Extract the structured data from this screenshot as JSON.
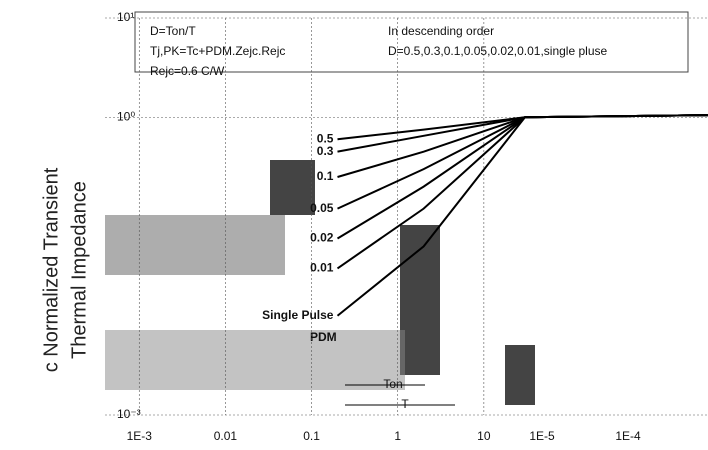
{
  "chart_data": {
    "type": "line",
    "y_label_lines": [
      "c Normalized Transient",
      "Thermal   Impedance"
    ],
    "xlim": [
      0.0004,
      4000
    ],
    "ylim": [
      0.001,
      10
    ],
    "log_x": true,
    "log_y": true,
    "grid": true,
    "xticks": [
      {
        "value": 0.001,
        "label": "1E-3"
      },
      0.01,
      0.1,
      1,
      10
    ],
    "yticks": [
      {
        "value": 10,
        "label": "10¹"
      },
      {
        "value": 1,
        "label": "10⁰"
      },
      {
        "value": 0.001,
        "label": "10⁻³"
      }
    ],
    "x": [
      0.2,
      2,
      30,
      4000
    ],
    "series": [
      {
        "name": "0.5",
        "color": "#000000",
        "values": [
          0.6,
          0.75,
          1,
          1.05
        ]
      },
      {
        "name": "0.3",
        "color": "#000000",
        "values": [
          0.45,
          0.65,
          1,
          1.05
        ]
      },
      {
        "name": "0.1",
        "color": "#000000",
        "values": [
          0.25,
          0.45,
          1,
          1.05
        ]
      },
      {
        "name": "0.05",
        "color": "#000000",
        "values": [
          0.12,
          0.3,
          1,
          1.05
        ]
      },
      {
        "name": "0.02",
        "color": "#000000",
        "values": [
          0.06,
          0.2,
          1,
          1.05
        ]
      },
      {
        "name": "0.01",
        "color": "#000000",
        "values": [
          0.03,
          0.12,
          1,
          1.05
        ]
      },
      {
        "name": "Single Pulse",
        "color": "#000000",
        "values": [
          0.01,
          0.05,
          1,
          1.05
        ]
      }
    ],
    "info_box": [
      "D=Ton/T",
      "Tj,PK=Tc+PDM.Zejc.Rejc",
      "Rejc=0.6 C/W",
      "In descending order",
      "D=0.5,0.3,0.1,0.05,0.02,0.01,single pluse"
    ],
    "pulse_diagram": [
      "PDM",
      "Ton",
      "T"
    ],
    "stray_labels": [
      "1E-5",
      "1E-4"
    ]
  }
}
